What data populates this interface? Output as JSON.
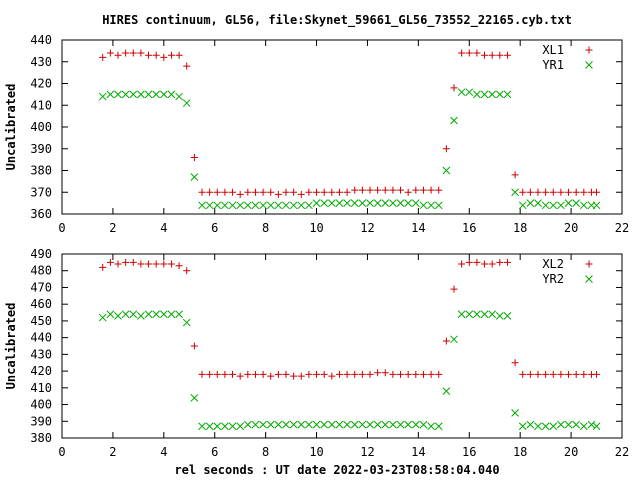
{
  "chart_data": {
    "type": "scatter",
    "title": "HIRES continuum, GL56, file:Skynet_59661_GL56_73552_22165.cyb.txt",
    "xlabel": "rel seconds : UT date 2022-03-23T08:58:04.040",
    "xlim": [
      0,
      22
    ],
    "xticks": [
      "0",
      "2",
      "4",
      "6",
      "8",
      "10",
      "12",
      "14",
      "16",
      "18",
      "20",
      "22"
    ],
    "panels": [
      {
        "ylabel": "Uncalibrated",
        "ylim": [
          360,
          440
        ],
        "yticks": [
          "360",
          "370",
          "380",
          "390",
          "400",
          "410",
          "420",
          "430",
          "440"
        ],
        "series": [
          {
            "name": "XL1",
            "marker": "plus",
            "color": "#cc0000",
            "x": [
              1.6,
              1.9,
              2.2,
              2.5,
              2.8,
              3.1,
              3.4,
              3.7,
              4.0,
              4.3,
              4.6,
              4.9,
              5.2,
              5.5,
              5.8,
              6.1,
              6.4,
              6.7,
              7.0,
              7.3,
              7.6,
              7.9,
              8.2,
              8.5,
              8.8,
              9.1,
              9.4,
              9.7,
              10.0,
              10.3,
              10.6,
              10.9,
              11.2,
              11.5,
              11.8,
              12.1,
              12.4,
              12.7,
              13.0,
              13.3,
              13.6,
              13.9,
              14.2,
              14.5,
              14.8,
              15.1,
              15.4,
              15.7,
              16.0,
              16.3,
              16.6,
              16.9,
              17.2,
              17.5,
              17.8,
              18.1,
              18.4,
              18.7,
              19.0,
              19.3,
              19.6,
              19.9,
              20.2,
              20.5,
              20.8,
              21.0
            ],
            "y": [
              432,
              434,
              433,
              434,
              434,
              434,
              433,
              433,
              432,
              433,
              433,
              428,
              386,
              370,
              370,
              370,
              370,
              370,
              369,
              370,
              370,
              370,
              370,
              369,
              370,
              370,
              369,
              370,
              370,
              370,
              370,
              370,
              370,
              371,
              371,
              371,
              371,
              371,
              371,
              371,
              370,
              371,
              371,
              371,
              371,
              390,
              418,
              434,
              434,
              434,
              433,
              433,
              433,
              433,
              378,
              370,
              370,
              370,
              370,
              370,
              370,
              370,
              370,
              370,
              370,
              370
            ]
          },
          {
            "name": "YR1",
            "marker": "cross",
            "color": "#00aa00",
            "x": [
              1.6,
              1.9,
              2.2,
              2.5,
              2.8,
              3.1,
              3.4,
              3.7,
              4.0,
              4.3,
              4.6,
              4.9,
              5.2,
              5.5,
              5.8,
              6.1,
              6.4,
              6.7,
              7.0,
              7.3,
              7.6,
              7.9,
              8.2,
              8.5,
              8.8,
              9.1,
              9.4,
              9.7,
              10.0,
              10.3,
              10.6,
              10.9,
              11.2,
              11.5,
              11.8,
              12.1,
              12.4,
              12.7,
              13.0,
              13.3,
              13.6,
              13.9,
              14.2,
              14.5,
              14.8,
              15.1,
              15.4,
              15.7,
              16.0,
              16.3,
              16.6,
              16.9,
              17.2,
              17.5,
              17.8,
              18.1,
              18.4,
              18.7,
              19.0,
              19.3,
              19.6,
              19.9,
              20.2,
              20.5,
              20.8,
              21.0
            ],
            "y": [
              414,
              415,
              415,
              415,
              415,
              415,
              415,
              415,
              415,
              415,
              414,
              411,
              377,
              364,
              364,
              364,
              364,
              364,
              364,
              364,
              364,
              364,
              364,
              364,
              364,
              364,
              364,
              364,
              365,
              365,
              365,
              365,
              365,
              365,
              365,
              365,
              365,
              365,
              365,
              365,
              365,
              365,
              364,
              364,
              364,
              380,
              403,
              416,
              416,
              415,
              415,
              415,
              415,
              415,
              370,
              364,
              365,
              365,
              364,
              364,
              364,
              365,
              365,
              364,
              364,
              364
            ]
          }
        ]
      },
      {
        "ylabel": "Uncalibrated",
        "ylim": [
          380,
          490
        ],
        "yticks": [
          "380",
          "390",
          "400",
          "410",
          "420",
          "430",
          "440",
          "450",
          "460",
          "470",
          "480",
          "490"
        ],
        "series": [
          {
            "name": "XL2",
            "marker": "plus",
            "color": "#cc0000",
            "x": [
              1.6,
              1.9,
              2.2,
              2.5,
              2.8,
              3.1,
              3.4,
              3.7,
              4.0,
              4.3,
              4.6,
              4.9,
              5.2,
              5.5,
              5.8,
              6.1,
              6.4,
              6.7,
              7.0,
              7.3,
              7.6,
              7.9,
              8.2,
              8.5,
              8.8,
              9.1,
              9.4,
              9.7,
              10.0,
              10.3,
              10.6,
              10.9,
              11.2,
              11.5,
              11.8,
              12.1,
              12.4,
              12.7,
              13.0,
              13.3,
              13.6,
              13.9,
              14.2,
              14.5,
              14.8,
              15.1,
              15.4,
              15.7,
              16.0,
              16.3,
              16.6,
              16.9,
              17.2,
              17.5,
              17.8,
              18.1,
              18.4,
              18.7,
              19.0,
              19.3,
              19.6,
              19.9,
              20.2,
              20.5,
              20.8,
              21.0
            ],
            "y": [
              482,
              485,
              484,
              485,
              485,
              484,
              484,
              484,
              484,
              484,
              483,
              480,
              435,
              418,
              418,
              418,
              418,
              418,
              417,
              418,
              418,
              418,
              417,
              418,
              418,
              417,
              417,
              418,
              418,
              418,
              417,
              418,
              418,
              418,
              418,
              418,
              419,
              419,
              418,
              418,
              418,
              418,
              418,
              418,
              418,
              438,
              469,
              484,
              485,
              485,
              484,
              484,
              485,
              485,
              425,
              418,
              418,
              418,
              418,
              418,
              418,
              418,
              418,
              418,
              418,
              418
            ]
          },
          {
            "name": "YR2",
            "marker": "cross",
            "color": "#00aa00",
            "x": [
              1.6,
              1.9,
              2.2,
              2.5,
              2.8,
              3.1,
              3.4,
              3.7,
              4.0,
              4.3,
              4.6,
              4.9,
              5.2,
              5.5,
              5.8,
              6.1,
              6.4,
              6.7,
              7.0,
              7.3,
              7.6,
              7.9,
              8.2,
              8.5,
              8.8,
              9.1,
              9.4,
              9.7,
              10.0,
              10.3,
              10.6,
              10.9,
              11.2,
              11.5,
              11.8,
              12.1,
              12.4,
              12.7,
              13.0,
              13.3,
              13.6,
              13.9,
              14.2,
              14.5,
              14.8,
              15.1,
              15.4,
              15.7,
              16.0,
              16.3,
              16.6,
              16.9,
              17.2,
              17.5,
              17.8,
              18.1,
              18.4,
              18.7,
              19.0,
              19.3,
              19.6,
              19.9,
              20.2,
              20.5,
              20.8,
              21.0
            ],
            "y": [
              452,
              454,
              453,
              454,
              454,
              453,
              454,
              454,
              454,
              454,
              454,
              449,
              404,
              387,
              387,
              387,
              387,
              387,
              387,
              388,
              388,
              388,
              388,
              388,
              388,
              388,
              388,
              388,
              388,
              388,
              388,
              388,
              388,
              388,
              388,
              388,
              388,
              388,
              388,
              388,
              388,
              388,
              388,
              387,
              387,
              408,
              439,
              454,
              454,
              454,
              454,
              454,
              453,
              453,
              395,
              387,
              388,
              387,
              387,
              387,
              388,
              388,
              388,
              387,
              388,
              387
            ]
          }
        ]
      }
    ]
  }
}
